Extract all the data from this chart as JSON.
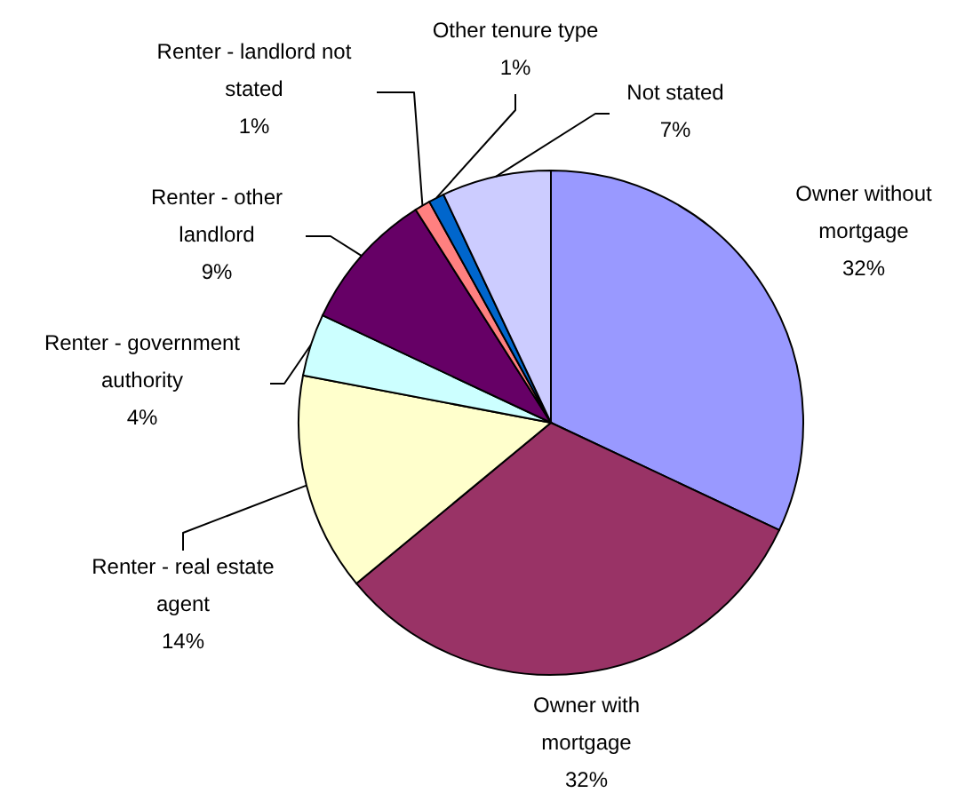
{
  "chart_data": {
    "type": "pie",
    "categories": [
      "Owner without mortgage",
      "Owner with mortgage",
      "Renter - real estate agent",
      "Renter - government authority",
      "Renter - other landlord",
      "Renter - landlord not stated",
      "Other tenure type",
      "Not stated"
    ],
    "values": [
      32,
      32,
      14,
      4,
      9,
      1,
      1,
      7
    ],
    "value_labels": [
      "32%",
      "32%",
      "14%",
      "4%",
      "9%",
      "1%",
      "1%",
      "7%"
    ],
    "colors": [
      "#9999ff",
      "#993366",
      "#ffffcc",
      "#ccffff",
      "#660066",
      "#ff8080",
      "#0066cc",
      "#ccccff"
    ]
  }
}
